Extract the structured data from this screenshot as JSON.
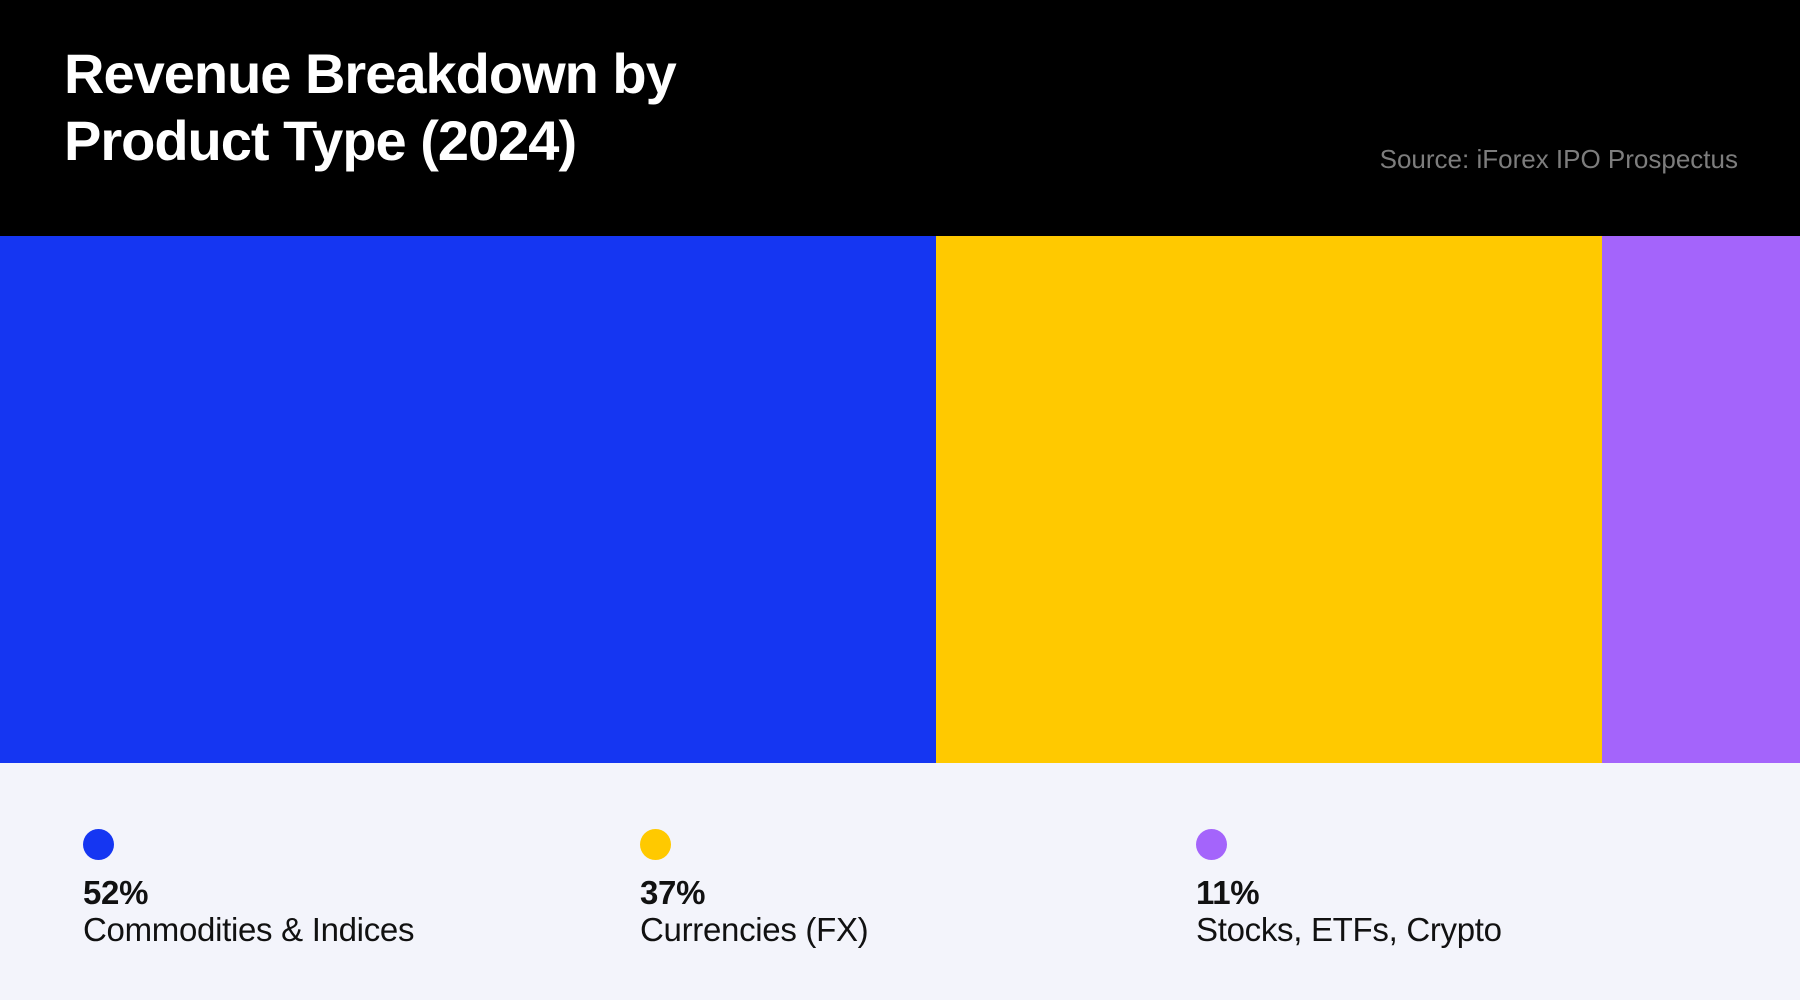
{
  "header": {
    "title_line1": "Revenue Breakdown by",
    "title_line2": "Product Type (2024)",
    "source": "Source: iForex IPO Prospectus"
  },
  "colors": {
    "header_background": "#000000",
    "footer_background": "#f3f4fb",
    "title_text": "#ffffff",
    "source_text": "#7d7d7d",
    "legend_text": "#111111"
  },
  "chart_data": {
    "type": "bar",
    "subtype": "horizontal-stacked-100-percent",
    "title": "Revenue Breakdown by Product Type (2024)",
    "source": "Source: iForex IPO Prospectus",
    "categories": [
      "Commodities & Indices",
      "Currencies (FX)",
      "Stocks, ETFs, Crypto"
    ],
    "values": [
      52,
      37,
      11
    ],
    "unit": "%",
    "colors": [
      "#1536f2",
      "#ffc900",
      "#a464fb"
    ],
    "legend_position": "bottom",
    "axis": "none",
    "grid": false
  },
  "legend": {
    "items": [
      {
        "percent": "52%",
        "label": "Commodities & Indices",
        "color": "#1536f2"
      },
      {
        "percent": "37%",
        "label": "Currencies (FX)",
        "color": "#ffc900"
      },
      {
        "percent": "11%",
        "label": "Stocks, ETFs, Crypto",
        "color": "#a464fb"
      }
    ]
  }
}
